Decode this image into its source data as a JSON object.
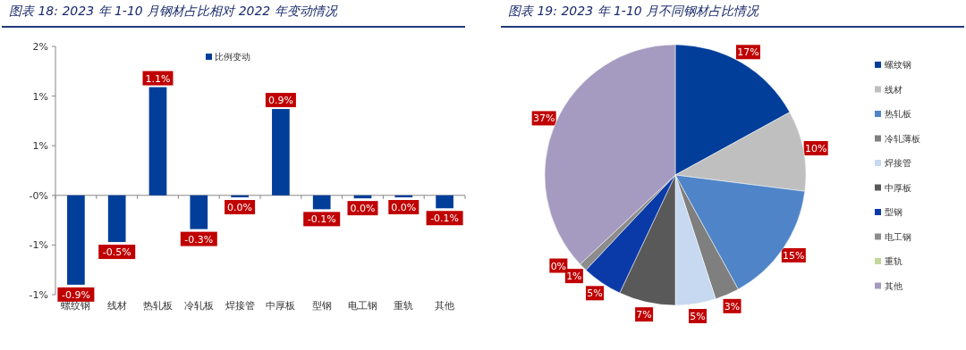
{
  "chart_data": [
    {
      "type": "bar",
      "title": "图表 18:  2023 年 1-10 月钢材占比相对 2022 年变动情况",
      "categories": [
        "螺纹钢",
        "线材",
        "热轧板",
        "冷轧板",
        "焊接管",
        "中厚板",
        "型钢",
        "电工钢",
        "重轨",
        "其他"
      ],
      "series": [
        {
          "name": "比例变动",
          "color": "#003e9a",
          "values": [
            -0.9,
            -0.47,
            1.09,
            -0.34,
            -0.02,
            0.87,
            -0.14,
            -0.03,
            -0.02,
            -0.13
          ],
          "value_labels": [
            "-0.9%",
            "-0.5%",
            "1.1%",
            "-0.3%",
            "0.0%",
            "0.9%",
            "-0.1%",
            "0.0%",
            "0.0%",
            "-0.1%"
          ]
        }
      ],
      "ylim": [
        -1.0,
        1.5
      ],
      "yticks": [
        {
          "value": 1.5,
          "label": "2%"
        },
        {
          "value": 1.0,
          "label": "1%"
        },
        {
          "value": 0.5,
          "label": "1%"
        },
        {
          "value": 0,
          "label": "-0%"
        },
        {
          "value": -0.5,
          "label": "-1%"
        },
        {
          "value": -1.0,
          "label": "-1%"
        }
      ],
      "legend": "top"
    },
    {
      "type": "pie",
      "title": "图表 19:  2023 年 1-10 月不同钢材占比情况",
      "categories": [
        "螺纹钢",
        "线材",
        "热轧板",
        "冷轧薄板",
        "焊接管",
        "中厚板",
        "型钢",
        "电工钢",
        "重轨",
        "其他"
      ],
      "values": [
        17,
        10,
        15,
        3,
        5,
        7,
        5,
        1,
        0,
        37
      ],
      "colors": [
        "#003e9a",
        "#bfbfbf",
        "#4f85c8",
        "#7f7f7f",
        "#c6d9f0",
        "#595959",
        "#0a3aa8",
        "#8c8c8c",
        "#c3d69b",
        "#a59bc0"
      ],
      "value_labels": [
        "17%",
        "10%",
        "15%",
        "3%",
        "5%",
        "7%",
        "5%",
        "1%",
        "0%",
        "37%"
      ],
      "legend": "right"
    }
  ]
}
